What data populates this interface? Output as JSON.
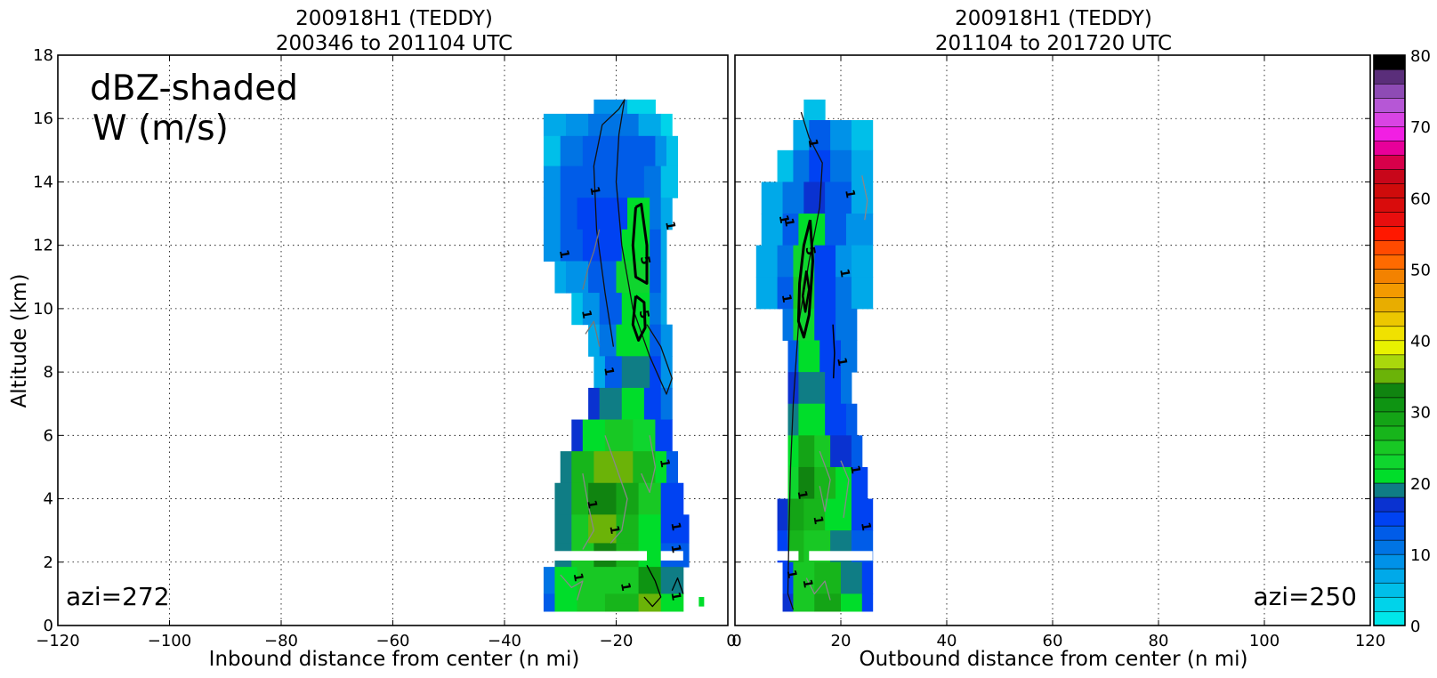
{
  "chart_data": [
    {
      "type": "heatmap",
      "title": "200918H1 (TEDDY)",
      "subtitle": "200346 to 201104 UTC",
      "xlabel": "Inbound distance from center (n mi)",
      "ylabel": "Altitude (km)",
      "xlim": [
        -120,
        0
      ],
      "ylim": [
        0,
        18
      ],
      "xticks": [
        "−120",
        "−100",
        "−80",
        "−60",
        "−40",
        "−20",
        "0"
      ],
      "yticks": [
        "0",
        "2",
        "4",
        "6",
        "8",
        "10",
        "12",
        "14",
        "16",
        "18"
      ],
      "grid": true,
      "annotation_main": "dBZ-shaded",
      "annotation_sub": "W (m/s)",
      "azimuth_label": "azi=272",
      "contour_labels": [
        "1",
        "1",
        "1",
        "1",
        "5",
        "5",
        "1",
        "1",
        "1",
        "1",
        "1",
        "1",
        "1",
        "1",
        "1"
      ],
      "echo_columns": [
        {
          "x0": -31,
          "x1": -7,
          "ybot": 0.5,
          "ytop": 16.5,
          "peak_dbz": 40
        },
        {
          "x0": -31,
          "x1": -7,
          "ybot": 0.5,
          "ytop": 5.8,
          "peak_dbz": 38
        }
      ],
      "updraft_core": {
        "x": -16,
        "y0": 9,
        "y1": 13,
        "w_max": 5
      }
    },
    {
      "type": "heatmap",
      "title": "200918H1 (TEDDY)",
      "subtitle": "201104 to 201720 UTC",
      "xlabel": "Outbound distance from center (n mi)",
      "ylabel": "",
      "xlim": [
        0,
        120
      ],
      "ylim": [
        0,
        18
      ],
      "xticks": [
        "0",
        "20",
        "40",
        "60",
        "80",
        "100",
        "120"
      ],
      "grid": true,
      "azimuth_label": "azi=250",
      "contour_labels": [
        "1",
        "1",
        "1",
        "1",
        "1",
        "5",
        "1",
        "1",
        "1",
        "1",
        "1",
        "1",
        "1",
        "1"
      ],
      "echo_columns": [
        {
          "x0": 4,
          "x1": 26,
          "ybot": 0.5,
          "ytop": 16.5,
          "peak_dbz": 38
        }
      ],
      "updraft_core": {
        "x": 13,
        "y0": 9,
        "y1": 12.5,
        "w_max": 5
      }
    }
  ],
  "colorbar": {
    "label_values": [
      "0",
      "10",
      "20",
      "30",
      "40",
      "50",
      "60",
      "70",
      "80"
    ],
    "range": [
      0,
      80
    ],
    "colors": [
      "#00e7ea",
      "#00d3ea",
      "#00bfe9",
      "#00a9e9",
      "#0092e8",
      "#0074e4",
      "#005ce8",
      "#0042f2",
      "#0a32d0",
      "#0f7d85",
      "#00dd2a",
      "#0fd52e",
      "#18c824",
      "#17b51b",
      "#14a416",
      "#0e9412",
      "#108410",
      "#6bb308",
      "#a9d80c",
      "#e8f200",
      "#f0e100",
      "#ecc700",
      "#e8ad00",
      "#f39a00",
      "#f38200",
      "#ff6a00",
      "#ff4a00",
      "#ff1800",
      "#e80e0e",
      "#d90c0c",
      "#cf0b0b",
      "#c8061a",
      "#d8004a",
      "#e8009a",
      "#f11fe3",
      "#d944e4",
      "#b657d6",
      "#8e4bb5",
      "#5a2e7a",
      "#000000"
    ]
  }
}
